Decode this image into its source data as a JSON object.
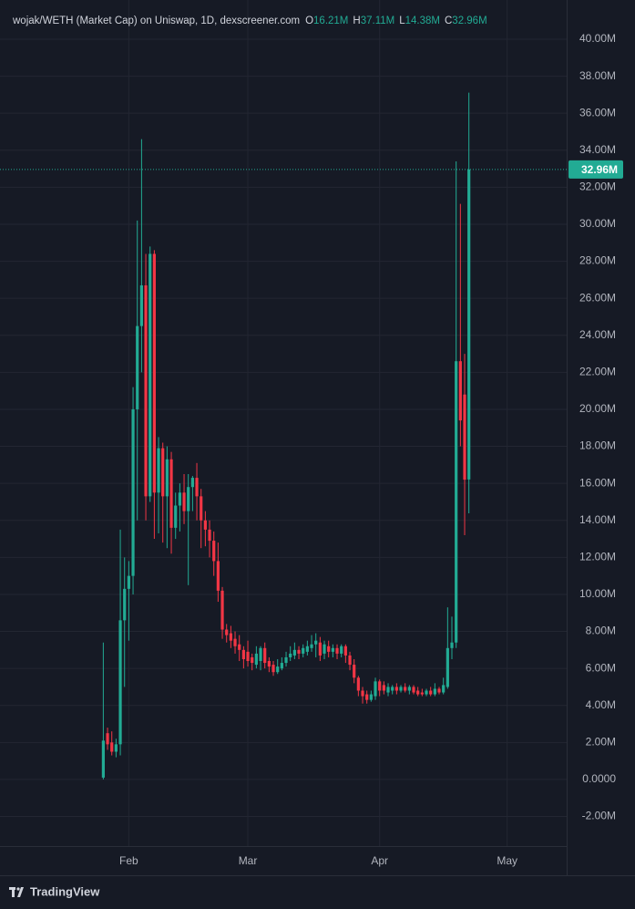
{
  "chart_data": {
    "type": "candlestick",
    "title": "wojak/WETH (Market Cap) on Uniswap, 1D, dexscreener.com",
    "header_values": [
      {
        "key": "O",
        "label": "16.21M"
      },
      {
        "key": "H",
        "label": "37.11M"
      },
      {
        "key": "L",
        "label": "14.38M"
      },
      {
        "key": "C",
        "label": "32.96M"
      }
    ],
    "footer": "TradingView",
    "up_color": "#22ab94",
    "down_color": "#f23645",
    "grid": true,
    "x": [
      0,
      1,
      2,
      3,
      4,
      5,
      6,
      7,
      8,
      9,
      10,
      11,
      12,
      13,
      14,
      15,
      16,
      17,
      18,
      19,
      20,
      21,
      22,
      23,
      24,
      25,
      26,
      27,
      28,
      29,
      30,
      31,
      32,
      33,
      34,
      35,
      36,
      37,
      38,
      39,
      40,
      41,
      42,
      43,
      44,
      45,
      46,
      47,
      48,
      49,
      50,
      51,
      52,
      53,
      54,
      55,
      56,
      57,
      58,
      59,
      60,
      61,
      62,
      63,
      64,
      65,
      66,
      67,
      68,
      69,
      70,
      71,
      72,
      73,
      74,
      75,
      76,
      77,
      78,
      79,
      80,
      81,
      82,
      83,
      84,
      85,
      86
    ],
    "open": [
      0.1,
      2.5,
      2.0,
      1.5,
      1.9,
      8.6,
      10.3,
      11.0,
      20.0,
      24.5,
      26.7,
      15.3,
      28.4,
      15.5,
      17.9,
      15.3,
      17.3,
      13.6,
      14.8,
      15.5,
      14.5,
      15.8,
      16.3,
      15.3,
      14.0,
      13.5,
      12.9,
      11.8,
      10.2,
      8.1,
      7.9,
      7.6,
      7.3,
      7.0,
      6.9,
      6.6,
      6.2,
      6.4,
      7.1,
      6.4,
      6.2,
      5.8,
      6.0,
      6.3,
      6.6,
      6.7,
      7.0,
      6.8,
      6.9,
      7.1,
      7.3,
      7.4,
      6.8,
      7.2,
      6.9,
      7.1,
      6.8,
      7.2,
      6.7,
      6.2,
      5.5,
      4.8,
      4.6,
      4.3,
      4.5,
      5.3,
      5.1,
      4.7,
      4.8,
      5.0,
      4.8,
      5.0,
      4.8,
      5.0,
      4.8,
      4.7,
      4.6,
      4.8,
      4.6,
      4.9,
      4.7,
      5.0,
      7.1,
      7.4,
      22.6,
      20.8,
      16.21
    ],
    "high": [
      7.4,
      2.8,
      2.6,
      2.2,
      13.5,
      12.0,
      11.8,
      21.2,
      30.2,
      34.6,
      28.4,
      28.8,
      28.6,
      18.5,
      18.2,
      18.0,
      17.7,
      15.5,
      16.0,
      16.5,
      16.5,
      16.4,
      17.1,
      15.7,
      14.5,
      14.0,
      13.4,
      12.8,
      10.4,
      8.4,
      8.3,
      8.0,
      7.8,
      7.2,
      7.5,
      6.8,
      7.2,
      7.2,
      7.4,
      6.6,
      6.4,
      6.5,
      6.6,
      6.9,
      7.2,
      7.4,
      7.2,
      7.3,
      7.5,
      7.8,
      7.9,
      7.7,
      7.5,
      7.5,
      7.3,
      7.3,
      7.3,
      7.3,
      6.9,
      6.5,
      5.6,
      5.0,
      4.8,
      4.8,
      5.5,
      5.4,
      5.3,
      5.2,
      5.1,
      5.2,
      5.1,
      5.2,
      5.1,
      5.1,
      5.0,
      4.9,
      4.9,
      5.0,
      5.2,
      5.0,
      5.5,
      9.3,
      8.8,
      33.4,
      31.1,
      23.0,
      37.11
    ],
    "low": [
      0,
      1.6,
      1.3,
      1.2,
      1.3,
      5.0,
      7.5,
      10.0,
      14.0,
      22.0,
      14.0,
      15.0,
      13.0,
      13.3,
      12.8,
      12.5,
      12.2,
      13.0,
      13.4,
      13.8,
      10.5,
      14.5,
      14.0,
      12.5,
      12.6,
      12.0,
      11.0,
      9.6,
      7.6,
      7.4,
      7.1,
      6.8,
      6.4,
      6.0,
      6.1,
      5.9,
      6.0,
      5.9,
      6.0,
      5.8,
      5.6,
      5.7,
      5.9,
      6.1,
      6.4,
      6.5,
      6.5,
      6.6,
      6.7,
      6.9,
      6.6,
      6.4,
      6.5,
      6.6,
      6.6,
      6.5,
      6.6,
      6.3,
      5.9,
      5.2,
      4.5,
      4.1,
      4.1,
      4.2,
      4.3,
      4.5,
      4.6,
      4.5,
      4.6,
      4.6,
      4.7,
      4.7,
      4.6,
      4.6,
      4.5,
      4.5,
      4.5,
      4.5,
      4.5,
      4.6,
      4.6,
      4.9,
      6.5,
      7.1,
      18.0,
      13.2,
      14.38
    ],
    "close": [
      2.1,
      1.9,
      1.5,
      1.9,
      8.6,
      10.3,
      11.0,
      20.0,
      24.5,
      26.7,
      15.3,
      28.4,
      15.5,
      17.9,
      15.3,
      17.3,
      13.6,
      14.8,
      15.5,
      14.5,
      15.8,
      16.3,
      15.3,
      14.0,
      13.5,
      12.9,
      11.8,
      10.2,
      8.1,
      7.8,
      7.5,
      7.2,
      7.0,
      6.5,
      6.4,
      6.3,
      6.8,
      7.1,
      6.3,
      6.1,
      5.8,
      6.1,
      6.3,
      6.6,
      6.8,
      7.0,
      6.8,
      7.1,
      7.2,
      7.3,
      7.5,
      6.7,
      7.3,
      6.9,
      7.1,
      6.8,
      7.2,
      6.7,
      6.2,
      5.5,
      4.8,
      4.5,
      4.3,
      4.6,
      5.3,
      4.8,
      4.8,
      5.0,
      5.0,
      4.8,
      5.0,
      4.8,
      5.0,
      4.7,
      4.6,
      4.6,
      4.8,
      4.6,
      4.9,
      4.7,
      5.1,
      7.1,
      7.4,
      22.6,
      19.4,
      16.2,
      32.96
    ],
    "xlim": [
      -24.3,
      109
    ],
    "xticks": [
      {
        "value": 6,
        "label": "Feb"
      },
      {
        "value": 34,
        "label": "Mar"
      },
      {
        "value": 65,
        "label": "Apr"
      },
      {
        "value": 95,
        "label": "May"
      }
    ],
    "ylim": [
      -3.6,
      40.64
    ],
    "yticks": [
      {
        "value": 40,
        "label": "40.00M"
      },
      {
        "value": 38,
        "label": "38.00M"
      },
      {
        "value": 36,
        "label": "36.00M"
      },
      {
        "value": 34,
        "label": "34.00M"
      },
      {
        "value": 32,
        "label": "32.00M"
      },
      {
        "value": 30,
        "label": "30.00M"
      },
      {
        "value": 28,
        "label": "28.00M"
      },
      {
        "value": 26,
        "label": "26.00M"
      },
      {
        "value": 24,
        "label": "24.00M"
      },
      {
        "value": 22,
        "label": "22.00M"
      },
      {
        "value": 20,
        "label": "20.00M"
      },
      {
        "value": 18,
        "label": "18.00M"
      },
      {
        "value": 16,
        "label": "16.00M"
      },
      {
        "value": 14,
        "label": "14.00M"
      },
      {
        "value": 12,
        "label": "12.00M"
      },
      {
        "value": 10,
        "label": "10.00M"
      },
      {
        "value": 8,
        "label": "8.00M"
      },
      {
        "value": 6,
        "label": "6.00M"
      },
      {
        "value": 4,
        "label": "4.00M"
      },
      {
        "value": 2,
        "label": "2.00M"
      },
      {
        "value": 0,
        "label": "0.0000"
      },
      {
        "value": -2,
        "label": "-2.00M"
      }
    ]
  }
}
